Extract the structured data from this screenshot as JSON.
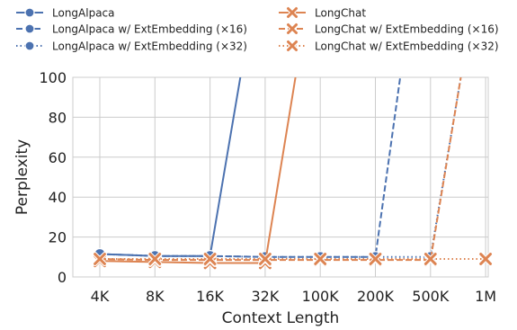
{
  "chart_data": {
    "type": "line",
    "title": "",
    "xlabel": "Context Length",
    "ylabel": "Perplexity",
    "categories": [
      "4K",
      "8K",
      "16K",
      "32K",
      "100K",
      "200K",
      "500K",
      "1M"
    ],
    "yticks": [
      "0",
      "20",
      "40",
      "60",
      "80",
      "100"
    ],
    "ylim": [
      0,
      100
    ],
    "grid": true,
    "legend_position": "top",
    "series": [
      {
        "name": "LongAlpaca",
        "color": "#4c72b0",
        "linestyle": "solid",
        "marker": "circle",
        "points": [
          [
            0,
            11.5
          ],
          [
            1,
            10.5
          ],
          [
            2,
            10.5
          ],
          [
            2.55,
            100
          ]
        ]
      },
      {
        "name": "LongAlpaca w/ ExtEmbedding (×16)",
        "color": "#4c72b0",
        "linestyle": "dashed",
        "marker": "circle",
        "points": [
          [
            0,
            11.5
          ],
          [
            1,
            10.5
          ],
          [
            2,
            10.5
          ],
          [
            3,
            10
          ],
          [
            4,
            10
          ],
          [
            5,
            10
          ],
          [
            5.45,
            100
          ]
        ]
      },
      {
        "name": "LongAlpaca w/ ExtEmbedding (×32)",
        "color": "#4c72b0",
        "linestyle": "dotted",
        "marker": "circle",
        "points": [
          [
            0,
            11.5
          ],
          [
            1,
            10.5
          ],
          [
            2,
            10.5
          ],
          [
            3,
            10
          ],
          [
            4,
            10
          ],
          [
            5,
            10
          ],
          [
            6,
            10
          ],
          [
            6.55,
            100
          ]
        ]
      },
      {
        "name": "LongChat",
        "color": "#dd8452",
        "linestyle": "solid",
        "marker": "x",
        "points": [
          [
            0,
            8
          ],
          [
            1,
            7.5
          ],
          [
            2,
            7
          ],
          [
            3,
            7
          ],
          [
            3.55,
            100
          ]
        ]
      },
      {
        "name": "LongChat w/ ExtEmbedding (×16)",
        "color": "#dd8452",
        "linestyle": "dashed",
        "marker": "x",
        "points": [
          [
            0,
            9
          ],
          [
            1,
            8.5
          ],
          [
            2,
            8.5
          ],
          [
            3,
            8.5
          ],
          [
            4,
            8.5
          ],
          [
            5,
            8.5
          ],
          [
            6,
            8.5
          ],
          [
            6.55,
            100
          ]
        ]
      },
      {
        "name": "LongChat w/ ExtEmbedding (×32)",
        "color": "#dd8452",
        "linestyle": "dotted",
        "marker": "x",
        "points": [
          [
            0,
            9
          ],
          [
            1,
            9
          ],
          [
            2,
            9
          ],
          [
            3,
            9
          ],
          [
            4,
            9
          ],
          [
            5,
            9
          ],
          [
            6,
            9
          ],
          [
            7,
            9
          ]
        ]
      }
    ]
  }
}
